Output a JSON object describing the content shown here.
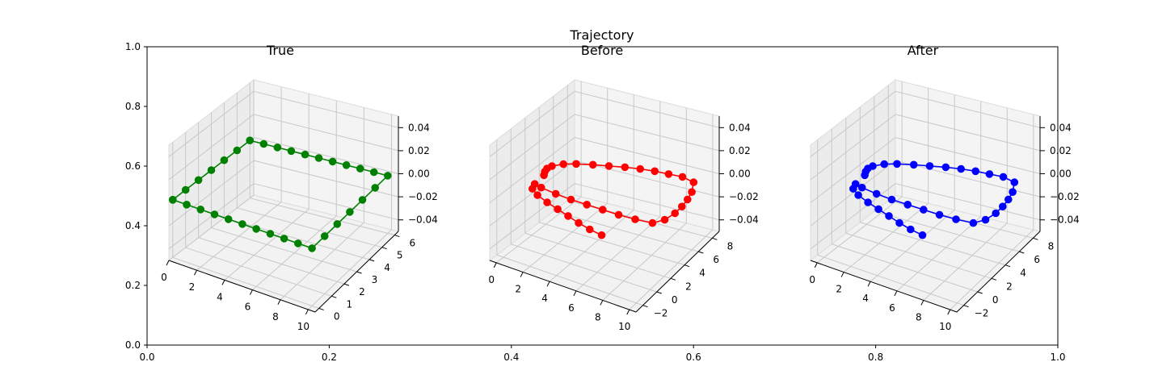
{
  "figure": {
    "title": "Trajectory",
    "outer_axes": {
      "x_ticks": [
        "0.0",
        "0.2",
        "0.4",
        "0.6",
        "0.8",
        "1.0"
      ],
      "x_values": [
        0.0,
        0.2,
        0.4,
        0.6,
        0.8,
        1.0
      ],
      "y_ticks": [
        "0.0",
        "0.2",
        "0.4",
        "0.6",
        "0.8",
        "1.0"
      ],
      "y_values": [
        0.0,
        0.2,
        0.4,
        0.6,
        0.8,
        1.0
      ]
    }
  },
  "chart_data": [
    {
      "type": "line",
      "projection": "3d",
      "title": "True",
      "color": "#008000",
      "marker": "circle",
      "grid": true,
      "xlim": [
        0,
        10.5
      ],
      "ylim": [
        -0.3,
        6.3
      ],
      "zlim": [
        -0.05,
        0.05
      ],
      "x_ticks": [
        "0",
        "2",
        "4",
        "6",
        "8",
        "10"
      ],
      "y_ticks": [
        "0",
        "1",
        "2",
        "3",
        "4",
        "5",
        "6"
      ],
      "z_ticks": [
        "0.04",
        "0.02",
        "0.00",
        "−0.02",
        "−0.04"
      ],
      "series": [
        {
          "x": [
            0,
            1,
            2,
            3,
            4,
            5,
            6,
            7,
            8,
            9,
            10,
            10,
            10,
            10,
            10,
            10,
            10,
            9,
            8,
            7,
            6,
            5,
            4,
            3,
            2,
            1,
            0,
            0,
            0,
            0,
            0,
            0,
            0
          ],
          "y": [
            0,
            0,
            0,
            0,
            0,
            0,
            0,
            0,
            0,
            0,
            0,
            1,
            2,
            3,
            4,
            5,
            6,
            6,
            6,
            6,
            6,
            6,
            6,
            6,
            6,
            6,
            6,
            5,
            4,
            3,
            2,
            1,
            0
          ],
          "z": [
            0,
            0,
            0,
            0,
            0,
            0,
            0,
            0,
            0,
            0,
            0,
            0,
            0,
            0,
            0,
            0,
            0,
            0,
            0,
            0,
            0,
            0,
            0,
            0,
            0,
            0,
            0,
            0,
            0,
            0,
            0,
            0,
            0
          ]
        }
      ]
    },
    {
      "type": "line",
      "projection": "3d",
      "title": "Before",
      "color": "#ff0000",
      "marker": "circle",
      "grid": true,
      "xlim": [
        -0.5,
        10.5
      ],
      "ylim": [
        -3,
        9
      ],
      "zlim": [
        -0.05,
        0.05
      ],
      "x_ticks": [
        "0",
        "2",
        "4",
        "6",
        "8",
        "10"
      ],
      "y_ticks": [
        "−2",
        "0",
        "2",
        "4",
        "6",
        "8"
      ],
      "z_ticks": [
        "0.04",
        "0.02",
        "0.00",
        "−0.02",
        "−0.04"
      ],
      "series": [
        {
          "x": [
            7.5,
            6.5,
            5.5,
            4.5,
            3.5,
            2.5,
            1.5,
            0.8,
            0.6,
            1.2,
            2.4,
            3.6,
            4.8,
            6.0,
            7.2,
            8.4,
            9.6,
            10.1,
            10.3,
            10.3,
            10.2,
            10.0,
            9.5,
            8.5,
            7.5,
            6.5,
            5.5,
            4.5,
            3.5,
            2.5,
            1.5,
            0.8,
            0.3,
            0.2,
            0.3,
            0.5
          ],
          "y": [
            -2.2,
            -2.0,
            -1.7,
            -1.3,
            -0.9,
            -0.5,
            0.0,
            0.6,
            1.3,
            1.1,
            0.9,
            0.8,
            0.8,
            0.8,
            0.8,
            0.9,
            1.1,
            1.9,
            3.0,
            4.0,
            5.0,
            6.0,
            7.2,
            7.5,
            7.4,
            7.3,
            7.1,
            6.8,
            6.4,
            6.0,
            5.5,
            5.0,
            4.3,
            3.8,
            3.3,
            2.8
          ],
          "z": [
            0,
            0,
            0,
            0,
            0,
            0,
            0,
            0,
            0,
            0,
            0,
            0,
            0,
            0,
            0,
            0,
            0,
            0,
            0,
            0,
            0,
            0,
            0,
            0,
            0,
            0,
            0,
            0,
            0,
            0,
            0,
            0,
            0,
            0,
            0,
            0
          ]
        }
      ]
    },
    {
      "type": "line",
      "projection": "3d",
      "title": "After",
      "color": "#0000ff",
      "marker": "circle",
      "grid": true,
      "xlim": [
        -0.5,
        10.5
      ],
      "ylim": [
        -3,
        9
      ],
      "zlim": [
        -0.05,
        0.05
      ],
      "x_ticks": [
        "0",
        "2",
        "4",
        "6",
        "8",
        "10"
      ],
      "y_ticks": [
        "−2",
        "0",
        "2",
        "4",
        "6",
        "8"
      ],
      "z_ticks": [
        "0.04",
        "0.02",
        "0.00",
        "−0.02",
        "−0.04"
      ],
      "series": [
        {
          "x": [
            7.5,
            6.5,
            5.5,
            4.5,
            3.5,
            2.5,
            1.5,
            0.8,
            0.6,
            1.2,
            2.4,
            3.6,
            4.8,
            6.0,
            7.2,
            8.4,
            9.6,
            10.1,
            10.3,
            10.3,
            10.2,
            10.0,
            9.5,
            8.5,
            7.5,
            6.5,
            5.5,
            4.5,
            3.5,
            2.5,
            1.5,
            0.8,
            0.3,
            0.2,
            0.3,
            0.5
          ],
          "y": [
            -2.2,
            -2.0,
            -1.7,
            -1.3,
            -0.9,
            -0.5,
            0.0,
            0.6,
            1.3,
            1.1,
            0.9,
            0.8,
            0.8,
            0.8,
            0.8,
            0.9,
            1.1,
            1.9,
            3.0,
            4.0,
            5.0,
            6.0,
            7.2,
            7.5,
            7.4,
            7.3,
            7.1,
            6.8,
            6.4,
            6.0,
            5.5,
            5.0,
            4.3,
            3.8,
            3.3,
            2.8
          ],
          "z": [
            0,
            0,
            0,
            0,
            0,
            0,
            0,
            0,
            0,
            0,
            0,
            0,
            0,
            0,
            0,
            0,
            0,
            0,
            0,
            0,
            0,
            0,
            0,
            0,
            0,
            0,
            0,
            0,
            0,
            0,
            0,
            0,
            0,
            0,
            0,
            0
          ]
        }
      ]
    }
  ]
}
